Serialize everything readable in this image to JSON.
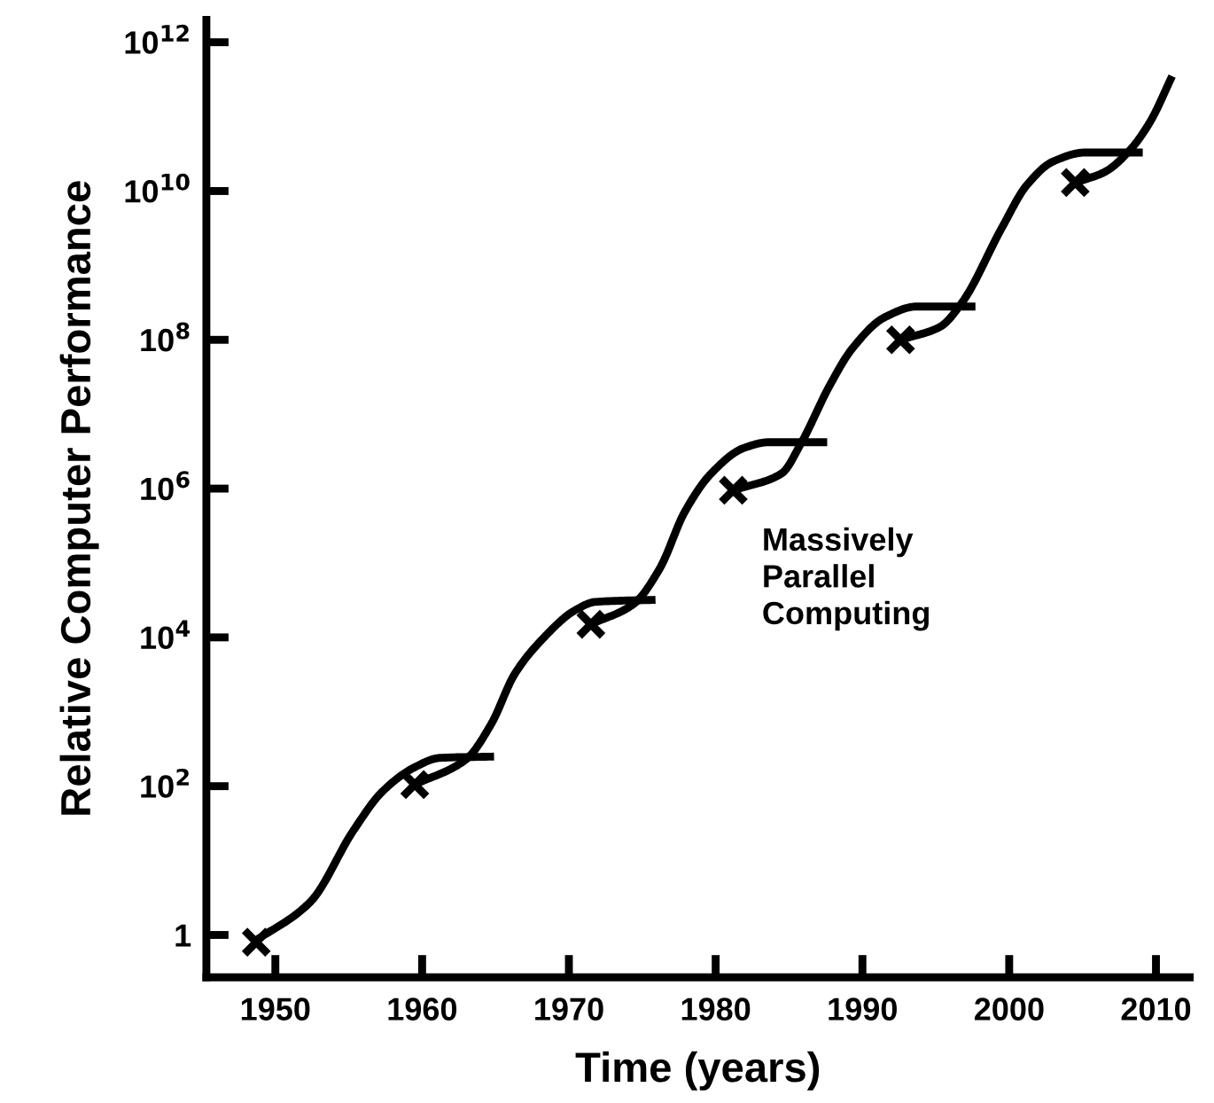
{
  "chart_data": {
    "type": "line",
    "xlabel": "Time (years)",
    "ylabel": "Relative Computer Performance",
    "log": "y",
    "xlim": [
      1945.3,
      2012.3
    ],
    "xticks": [
      1950,
      1960,
      1970,
      1980,
      1990,
      2000,
      2010
    ],
    "ylim": [
      0.27,
      2000000000000
    ],
    "yticks": [
      {
        "value": 1,
        "label": "1"
      },
      {
        "value": 100,
        "label": "10$^{2}$"
      },
      {
        "value": 10000,
        "label": "10$^{4}$"
      },
      {
        "value": 1000000,
        "label": "10$^{6}$"
      },
      {
        "value": 100000000,
        "label": "10$^{8}$"
      },
      {
        "value": 10000000000,
        "label": "10$^{10}$"
      },
      {
        "value": 1000000000000,
        "label": "10$^{12}$"
      }
    ],
    "line_style": "solid",
    "series": [
      {
        "color": "#000000",
        "x": [
          1948.5,
          1952.4,
          1955.3,
          1957.3,
          1959.5,
          1961.2,
          1964.9
        ],
        "values": [
          0.8,
          2.8,
          25,
          85,
          180,
          240,
          250
        ]
      },
      {
        "color": "#000000",
        "x": [
          1959.5,
          1963,
          1964.7,
          1966.3,
          1968.2,
          1970.4,
          1971.8,
          1975.9
        ],
        "values": [
          105,
          230,
          680,
          3200,
          9500,
          23000,
          30000,
          32000
        ]
      },
      {
        "color": "#000000",
        "x": [
          1971.5,
          1974.4,
          1976.2,
          1977.9,
          1979.7,
          1981.9,
          1983.6,
          1987.6
        ],
        "values": [
          15000,
          28000,
          85000,
          490000,
          1600000,
          3500000,
          4200000,
          4200000
        ]
      },
      {
        "color": "#000000",
        "x": [
          1981.2,
          1984.5,
          1985.8,
          1987.8,
          1989.3,
          1991.5,
          1993.7,
          1997.7
        ],
        "values": [
          950000,
          1600000,
          4000000,
          25000000,
          76000000,
          200000000,
          280000000,
          280000000
        ]
      },
      {
        "color": "#000000",
        "x": [
          1992.6,
          1995.3,
          1996.8,
          1999.5,
          2001.2,
          2003,
          2005.2,
          2009.1
        ],
        "values": [
          100000000,
          150000000,
          320000000,
          3200000000,
          12000000000,
          25000000000,
          33000000000,
          33000000000
        ]
      },
      {
        "color": "#000000",
        "x": [
          2004.5,
          2006.5,
          2008.2,
          2009.6,
          2011.1
        ],
        "values": [
          13000000000,
          18000000000,
          35000000000,
          85000000000,
          350000000000
        ]
      },
      {
        "type": "scatter",
        "marker": "cross",
        "color": "#000000",
        "x": [
          1948.7,
          1959.5,
          1971.5,
          1981.2,
          1992.6,
          2004.5
        ],
        "values": [
          0.8,
          105,
          15000,
          950000,
          100000000,
          13000000000
        ]
      }
    ],
    "annotations": [
      "Massively\nParallel\nComputing"
    ]
  }
}
